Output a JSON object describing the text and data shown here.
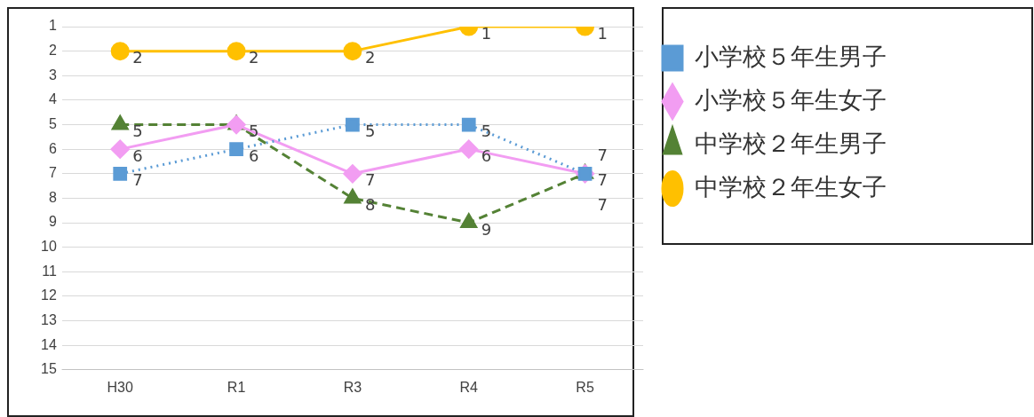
{
  "chart_data": {
    "type": "line",
    "categories": [
      "H30",
      "R1",
      "R3",
      "R4",
      "R5"
    ],
    "series": [
      {
        "name": "小学校５年生男子",
        "color": "#5b9bd5",
        "marker": "square",
        "line_style": "dotted",
        "values": [
          7,
          6,
          5,
          5,
          7
        ],
        "value_labels": [
          "7",
          "6",
          "5",
          "5",
          "7"
        ]
      },
      {
        "name": "小学校５年生女子",
        "color": "#f29df2",
        "marker": "diamond",
        "line_style": "solid",
        "values": [
          6,
          5,
          7,
          6,
          7
        ],
        "value_labels": [
          "6",
          null,
          "7",
          "6",
          "7"
        ]
      },
      {
        "name": "中学校２年生男子",
        "color": "#548235",
        "marker": "triangle",
        "line_style": "dashed",
        "values": [
          5,
          5,
          8,
          9,
          7
        ],
        "value_labels": [
          "5",
          "5",
          "8",
          "9",
          "7"
        ]
      },
      {
        "name": "中学校２年生女子",
        "color": "#ffc000",
        "marker": "circle",
        "line_style": "solid",
        "values": [
          2,
          2,
          2,
          1,
          1
        ],
        "value_labels": [
          "2",
          "2",
          "2",
          "1",
          "1"
        ]
      }
    ],
    "ylim": [
      15,
      1
    ],
    "yticks": [
      1,
      2,
      3,
      4,
      5,
      6,
      7,
      8,
      9,
      10,
      11,
      12,
      13,
      14,
      15
    ],
    "grid": "y",
    "legend": "right"
  }
}
